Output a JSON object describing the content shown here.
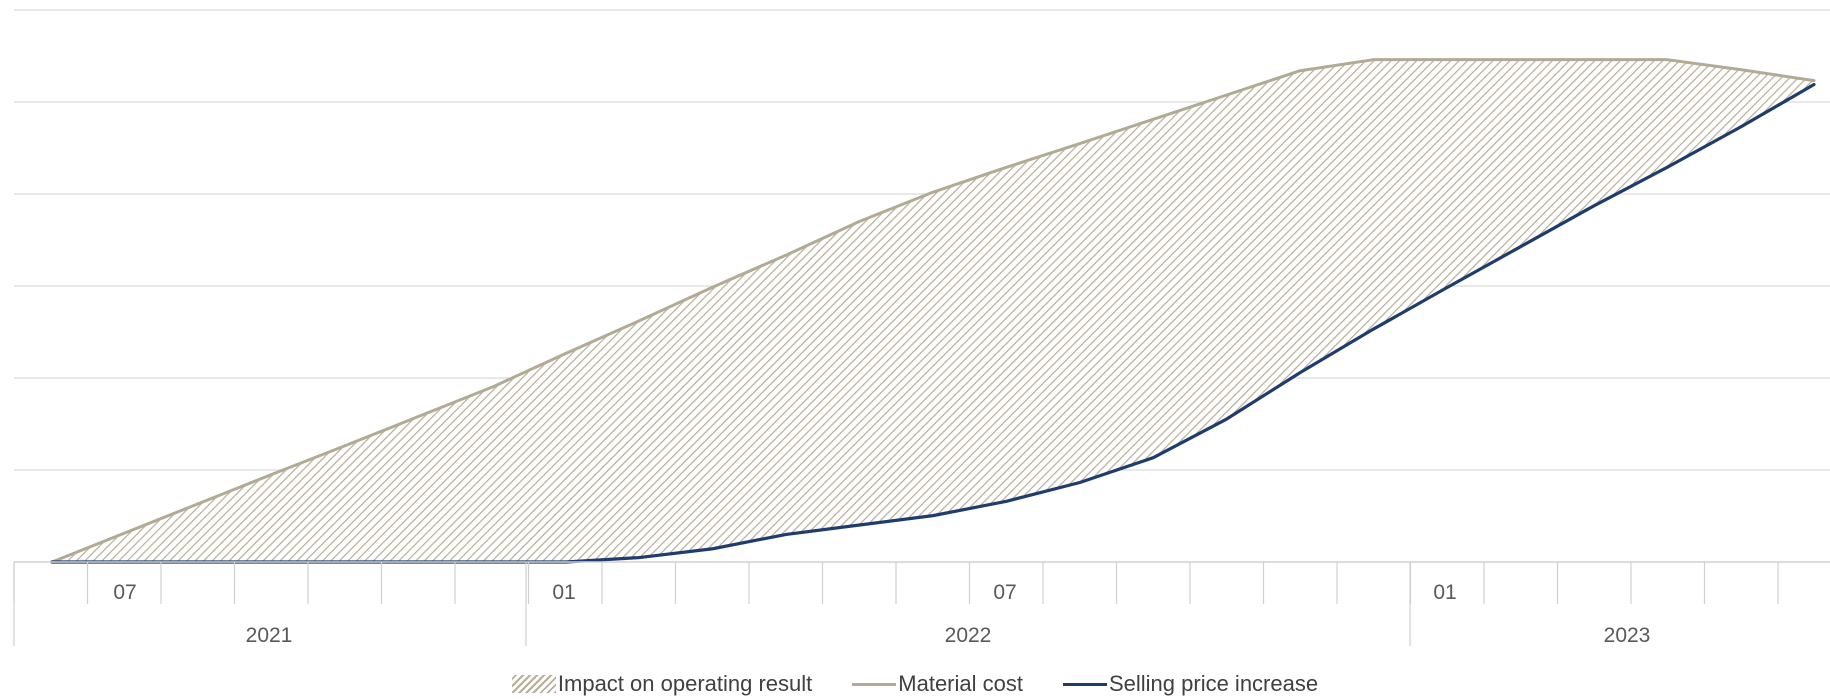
{
  "chart_data": {
    "type": "area",
    "x": [
      0,
      3,
      6,
      9,
      12,
      15,
      18,
      21,
      24,
      27,
      30,
      33,
      36,
      39,
      42,
      45,
      48,
      51,
      54,
      57,
      60,
      63,
      66,
      69,
      72
    ],
    "series": [
      {
        "name": "Material cost",
        "color": "#b3aa95",
        "values": [
          0,
          5.3,
          10.6,
          15.9,
          21.1,
          26.4,
          31.7,
          37.8,
          43.7,
          49.8,
          55.6,
          61.7,
          67.0,
          71.5,
          75.8,
          80.2,
          84.6,
          89.0,
          91.0,
          91.0,
          91.0,
          91.0,
          91.0,
          89.2,
          87.2
        ]
      },
      {
        "name": "Selling price increase",
        "color": "#1f3c6e",
        "values": [
          0,
          0,
          0,
          0,
          0,
          0,
          0,
          0,
          0.8,
          2.4,
          5.0,
          6.7,
          8.4,
          11.0,
          14.4,
          18.9,
          25.9,
          34.3,
          42.2,
          49.7,
          57.1,
          64.5,
          71.5,
          78.8,
          86.5
        ]
      }
    ],
    "fill_series_name": "Impact on operating result",
    "fill_pattern": "hatched",
    "ylim": [
      0,
      100
    ],
    "y_gridlines": 6,
    "y_tick_labels": false,
    "grid": true,
    "x_axis": {
      "month_ticks": [
        "07",
        "01",
        "07",
        "01"
      ],
      "year_labels": [
        "2021",
        "2022",
        "2023"
      ]
    },
    "legend_placement": "bottom-center"
  },
  "legend": {
    "impact": "Impact on operating result",
    "material": "Material cost",
    "selling": "Selling price increase"
  }
}
